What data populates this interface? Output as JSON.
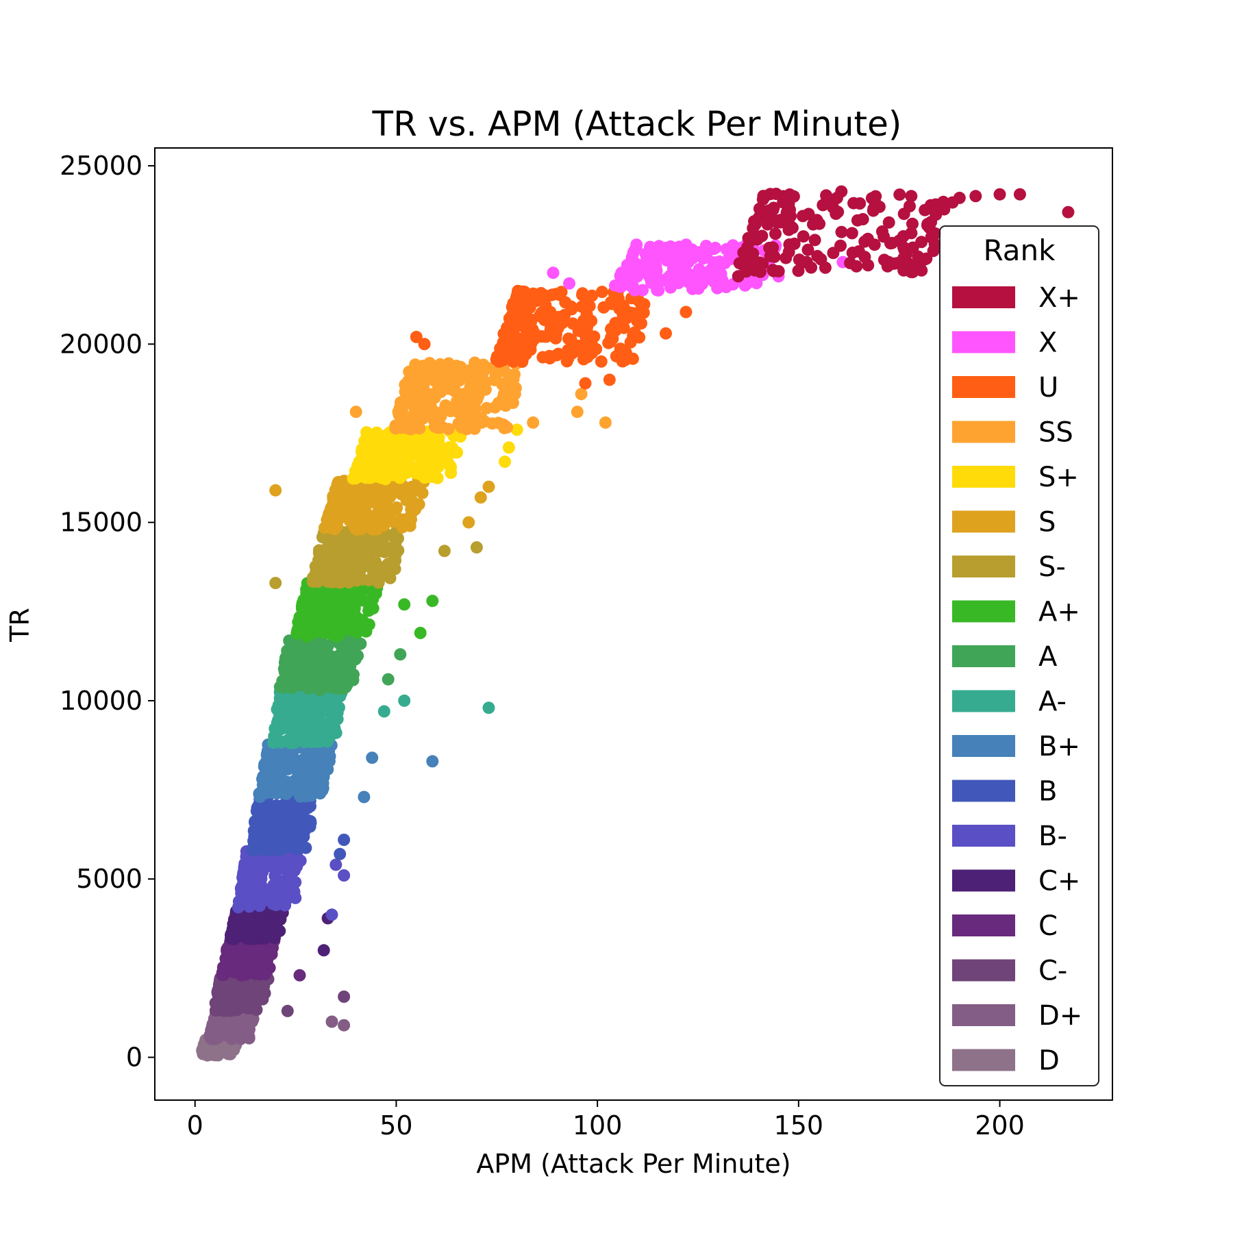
{
  "chart_data": {
    "type": "scatter",
    "title": "TR vs. APM (Attack Per Minute)",
    "xlabel": "APM (Attack Per Minute)",
    "ylabel": "TR",
    "xlim": [
      -10,
      228
    ],
    "ylim": [
      -1200,
      25500
    ],
    "xticks": [
      0,
      50,
      100,
      150,
      200
    ],
    "yticks": [
      0,
      5000,
      10000,
      15000,
      20000,
      25000
    ],
    "grid": false,
    "legend_title": "Rank",
    "legend_placement": "right",
    "series": [
      {
        "name": "X+",
        "color": "#b5103f",
        "tr_range": [
          22000,
          24300
        ],
        "apm_center": 158,
        "apm_spread": 24,
        "count": 160,
        "outliers": [
          [
            217,
            23700
          ],
          [
            205,
            24200
          ],
          [
            200,
            24200
          ],
          [
            194,
            24150
          ],
          [
            190,
            24100
          ],
          [
            183,
            23000
          ],
          [
            178,
            24150
          ],
          [
            165,
            22600
          ],
          [
            175,
            22900
          ],
          [
            135,
            21900
          ],
          [
            152,
            22300
          ]
        ]
      },
      {
        "name": "X",
        "color": "#ff55ff",
        "tr_range": [
          21500,
          22800
        ],
        "apm_center": 122,
        "apm_spread": 18,
        "count": 160,
        "outliers": [
          [
            89,
            22000
          ],
          [
            93,
            21700
          ],
          [
            161,
            22300
          ],
          [
            145,
            21900
          ],
          [
            132,
            21600
          ]
        ]
      },
      {
        "name": "U",
        "color": "#ff5e14",
        "tr_range": [
          19500,
          21500
        ],
        "apm_center": 92,
        "apm_spread": 17,
        "count": 210,
        "outliers": [
          [
            57,
            20000
          ],
          [
            55,
            20200
          ],
          [
            122,
            20900
          ],
          [
            117,
            20300
          ],
          [
            103,
            19000
          ],
          [
            97,
            18900
          ]
        ]
      },
      {
        "name": "SS",
        "color": "#ffa330",
        "tr_range": [
          17600,
          19500
        ],
        "apm_center": 64,
        "apm_spread": 14,
        "count": 210,
        "outliers": [
          [
            40,
            18100
          ],
          [
            96,
            18600
          ],
          [
            95,
            18100
          ],
          [
            102,
            17800
          ],
          [
            84,
            17800
          ]
        ]
      },
      {
        "name": "S+",
        "color": "#ffdb0a",
        "tr_range": [
          16200,
          17600
        ],
        "apm_center": 52,
        "apm_spread": 12,
        "count": 190,
        "outliers": [
          [
            77,
            16700
          ],
          [
            78,
            17100
          ],
          [
            80,
            17600
          ]
        ]
      },
      {
        "name": "S",
        "color": "#dea21e",
        "tr_range": [
          14800,
          16200
        ],
        "apm_center": 44,
        "apm_spread": 11,
        "count": 190,
        "outliers": [
          [
            20,
            15900
          ],
          [
            68,
            15000
          ],
          [
            71,
            15700
          ],
          [
            73,
            16000
          ]
        ]
      },
      {
        "name": "S-",
        "color": "#b89e2e",
        "tr_range": [
          13300,
          14800
        ],
        "apm_center": 40,
        "apm_spread": 10,
        "count": 190,
        "outliers": [
          [
            70,
            14300
          ],
          [
            62,
            14200
          ],
          [
            20,
            13300
          ]
        ]
      },
      {
        "name": "A+",
        "color": "#39b826",
        "tr_range": [
          11800,
          13300
        ],
        "apm_center": 35,
        "apm_spread": 9,
        "count": 190,
        "outliers": [
          [
            59,
            12800
          ],
          [
            56,
            11900
          ],
          [
            52,
            12700
          ]
        ]
      },
      {
        "name": "A",
        "color": "#40a556",
        "tr_range": [
          10300,
          11800
        ],
        "apm_center": 31,
        "apm_spread": 9,
        "count": 190,
        "outliers": [
          [
            51,
            11300
          ],
          [
            48,
            10600
          ]
        ]
      },
      {
        "name": "A-",
        "color": "#37ab8f",
        "tr_range": [
          8800,
          10300
        ],
        "apm_center": 28,
        "apm_spread": 8,
        "count": 190,
        "outliers": [
          [
            73,
            9800
          ],
          [
            52,
            10000
          ],
          [
            47,
            9700
          ]
        ]
      },
      {
        "name": "B+",
        "color": "#4681b9",
        "tr_range": [
          7300,
          8800
        ],
        "apm_center": 25,
        "apm_spread": 8,
        "count": 180,
        "outliers": [
          [
            59,
            8300
          ],
          [
            44,
            8400
          ],
          [
            42,
            7300
          ]
        ]
      },
      {
        "name": "B",
        "color": "#4158ba",
        "tr_range": [
          5800,
          7300
        ],
        "apm_center": 22,
        "apm_spread": 7,
        "count": 180,
        "outliers": [
          [
            37,
            6100
          ],
          [
            36,
            5700
          ]
        ]
      },
      {
        "name": "B-",
        "color": "#5a4fc4",
        "tr_range": [
          4200,
          5800
        ],
        "apm_center": 19,
        "apm_spread": 7,
        "count": 180,
        "outliers": [
          [
            37,
            5100
          ],
          [
            35,
            5400
          ],
          [
            34,
            4000
          ]
        ]
      },
      {
        "name": "C+",
        "color": "#4d2176",
        "tr_range": [
          3300,
          4200
        ],
        "apm_center": 16,
        "apm_spread": 6,
        "count": 150,
        "outliers": [
          [
            33,
            3900
          ],
          [
            32,
            3000
          ]
        ]
      },
      {
        "name": "C",
        "color": "#682a7c",
        "tr_range": [
          2300,
          3300
        ],
        "apm_center": 14,
        "apm_spread": 6,
        "count": 150,
        "outliers": [
          [
            26,
            2300
          ]
        ]
      },
      {
        "name": "C-",
        "color": "#6f4479",
        "tr_range": [
          1300,
          2300
        ],
        "apm_center": 12,
        "apm_spread": 6,
        "count": 150,
        "outliers": [
          [
            37,
            1700
          ],
          [
            23,
            1300
          ]
        ]
      },
      {
        "name": "D+",
        "color": "#835d85",
        "tr_range": [
          500,
          1300
        ],
        "apm_center": 10,
        "apm_spread": 5,
        "count": 130,
        "outliers": [
          [
            34,
            1000
          ],
          [
            37,
            900
          ]
        ]
      },
      {
        "name": "D",
        "color": "#8d7289",
        "tr_range": [
          50,
          500
        ],
        "apm_center": 7,
        "apm_spread": 4,
        "count": 110,
        "outliers": []
      }
    ]
  }
}
